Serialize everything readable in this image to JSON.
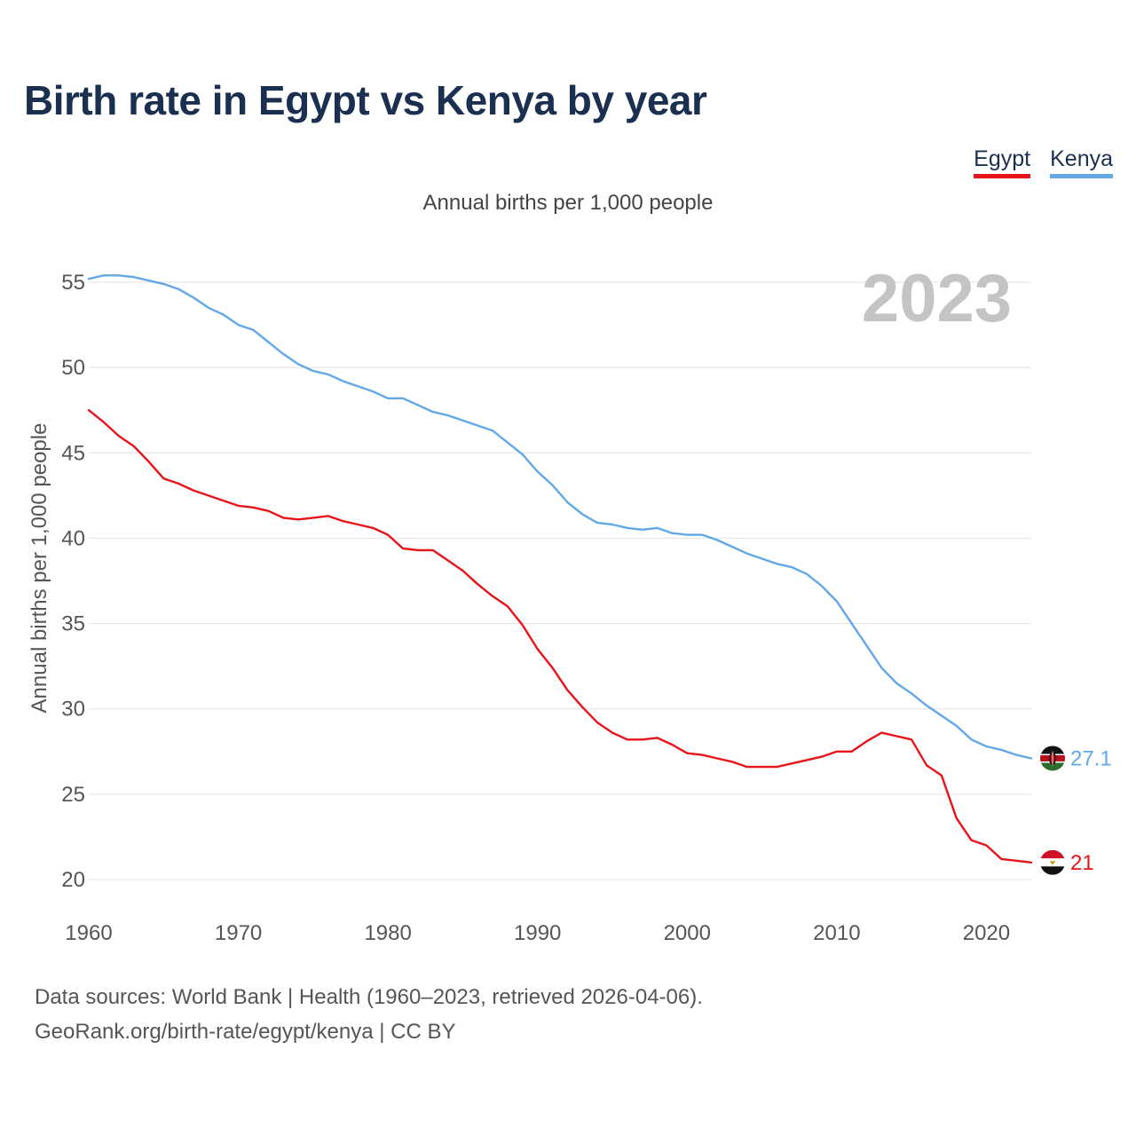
{
  "title": "Birth rate in Egypt vs Kenya by year",
  "subtitle": "Annual births per 1,000 people",
  "legend": [
    {
      "label": "Egypt",
      "color": "#e8141a"
    },
    {
      "label": "Kenya",
      "color": "#62a8e8"
    }
  ],
  "year_label": "2023",
  "footer": {
    "source": "Data sources: World Bank | Health (1960–2023, retrieved 2026-04-06).",
    "credit": "GeoRank.org/birth-rate/egypt/kenya | CC BY"
  },
  "chart_data": {
    "type": "line",
    "title": "Birth rate in Egypt vs Kenya by year",
    "xlabel": "",
    "ylabel": "Annual births per 1,000 people",
    "xlim": [
      1960,
      2023
    ],
    "ylim": [
      19.5,
      55.5
    ],
    "grid": true,
    "legend_position": "top-right",
    "x_ticks": [
      1960,
      1970,
      1980,
      1990,
      2000,
      2010,
      2020
    ],
    "y_ticks": [
      20,
      25,
      30,
      35,
      40,
      45,
      50,
      55
    ],
    "end_labels": [
      {
        "series": "Kenya",
        "text": "27.1",
        "flag": "kenya-flag"
      },
      {
        "series": "Egypt",
        "text": "21",
        "flag": "egypt-flag"
      }
    ],
    "series": [
      {
        "name": "Egypt",
        "color": "#e8141a",
        "x": [
          1960,
          1961,
          1962,
          1963,
          1964,
          1965,
          1966,
          1967,
          1968,
          1969,
          1970,
          1971,
          1972,
          1973,
          1974,
          1975,
          1976,
          1977,
          1978,
          1979,
          1980,
          1981,
          1982,
          1983,
          1984,
          1985,
          1986,
          1987,
          1988,
          1989,
          1990,
          1991,
          1992,
          1993,
          1994,
          1995,
          1996,
          1997,
          1998,
          1999,
          2000,
          2001,
          2002,
          2003,
          2004,
          2005,
          2006,
          2007,
          2008,
          2009,
          2010,
          2011,
          2012,
          2013,
          2014,
          2015,
          2016,
          2017,
          2018,
          2019,
          2020,
          2021,
          2022,
          2023
        ],
        "values": [
          47.5,
          46.8,
          46.0,
          45.4,
          44.5,
          43.5,
          43.2,
          42.8,
          42.5,
          42.2,
          41.9,
          41.8,
          41.6,
          41.2,
          41.1,
          41.2,
          41.3,
          41.0,
          40.8,
          40.6,
          40.2,
          39.4,
          39.3,
          39.3,
          38.7,
          38.1,
          37.3,
          36.6,
          36.0,
          34.9,
          33.5,
          32.4,
          31.1,
          30.1,
          29.2,
          28.6,
          28.2,
          28.2,
          28.3,
          27.9,
          27.4,
          27.3,
          27.1,
          26.9,
          26.6,
          26.6,
          26.6,
          26.8,
          27.0,
          27.2,
          27.5,
          27.5,
          28.1,
          28.6,
          28.4,
          28.2,
          26.7,
          26.1,
          23.6,
          22.3,
          22.0,
          21.2,
          21.1,
          21.0
        ]
      },
      {
        "name": "Kenya",
        "color": "#62a8e8",
        "x": [
          1960,
          1961,
          1962,
          1963,
          1964,
          1965,
          1966,
          1967,
          1968,
          1969,
          1970,
          1971,
          1972,
          1973,
          1974,
          1975,
          1976,
          1977,
          1978,
          1979,
          1980,
          1981,
          1982,
          1983,
          1984,
          1985,
          1986,
          1987,
          1988,
          1989,
          1990,
          1991,
          1992,
          1993,
          1994,
          1995,
          1996,
          1997,
          1998,
          1999,
          2000,
          2001,
          2002,
          2003,
          2004,
          2005,
          2006,
          2007,
          2008,
          2009,
          2010,
          2011,
          2012,
          2013,
          2014,
          2015,
          2016,
          2017,
          2018,
          2019,
          2020,
          2021,
          2022,
          2023
        ],
        "values": [
          55.2,
          55.4,
          55.4,
          55.3,
          55.1,
          54.9,
          54.6,
          54.1,
          53.5,
          53.1,
          52.5,
          52.2,
          51.5,
          50.8,
          50.2,
          49.8,
          49.6,
          49.2,
          48.9,
          48.6,
          48.2,
          48.2,
          47.8,
          47.4,
          47.2,
          46.9,
          46.6,
          46.3,
          45.6,
          44.9,
          43.9,
          43.1,
          42.1,
          41.4,
          40.9,
          40.8,
          40.6,
          40.5,
          40.6,
          40.3,
          40.2,
          40.2,
          39.9,
          39.5,
          39.1,
          38.8,
          38.5,
          38.3,
          37.9,
          37.2,
          36.3,
          35.0,
          33.7,
          32.4,
          31.5,
          30.9,
          30.2,
          29.6,
          29.0,
          28.2,
          27.8,
          27.6,
          27.3,
          27.1
        ]
      }
    ]
  }
}
